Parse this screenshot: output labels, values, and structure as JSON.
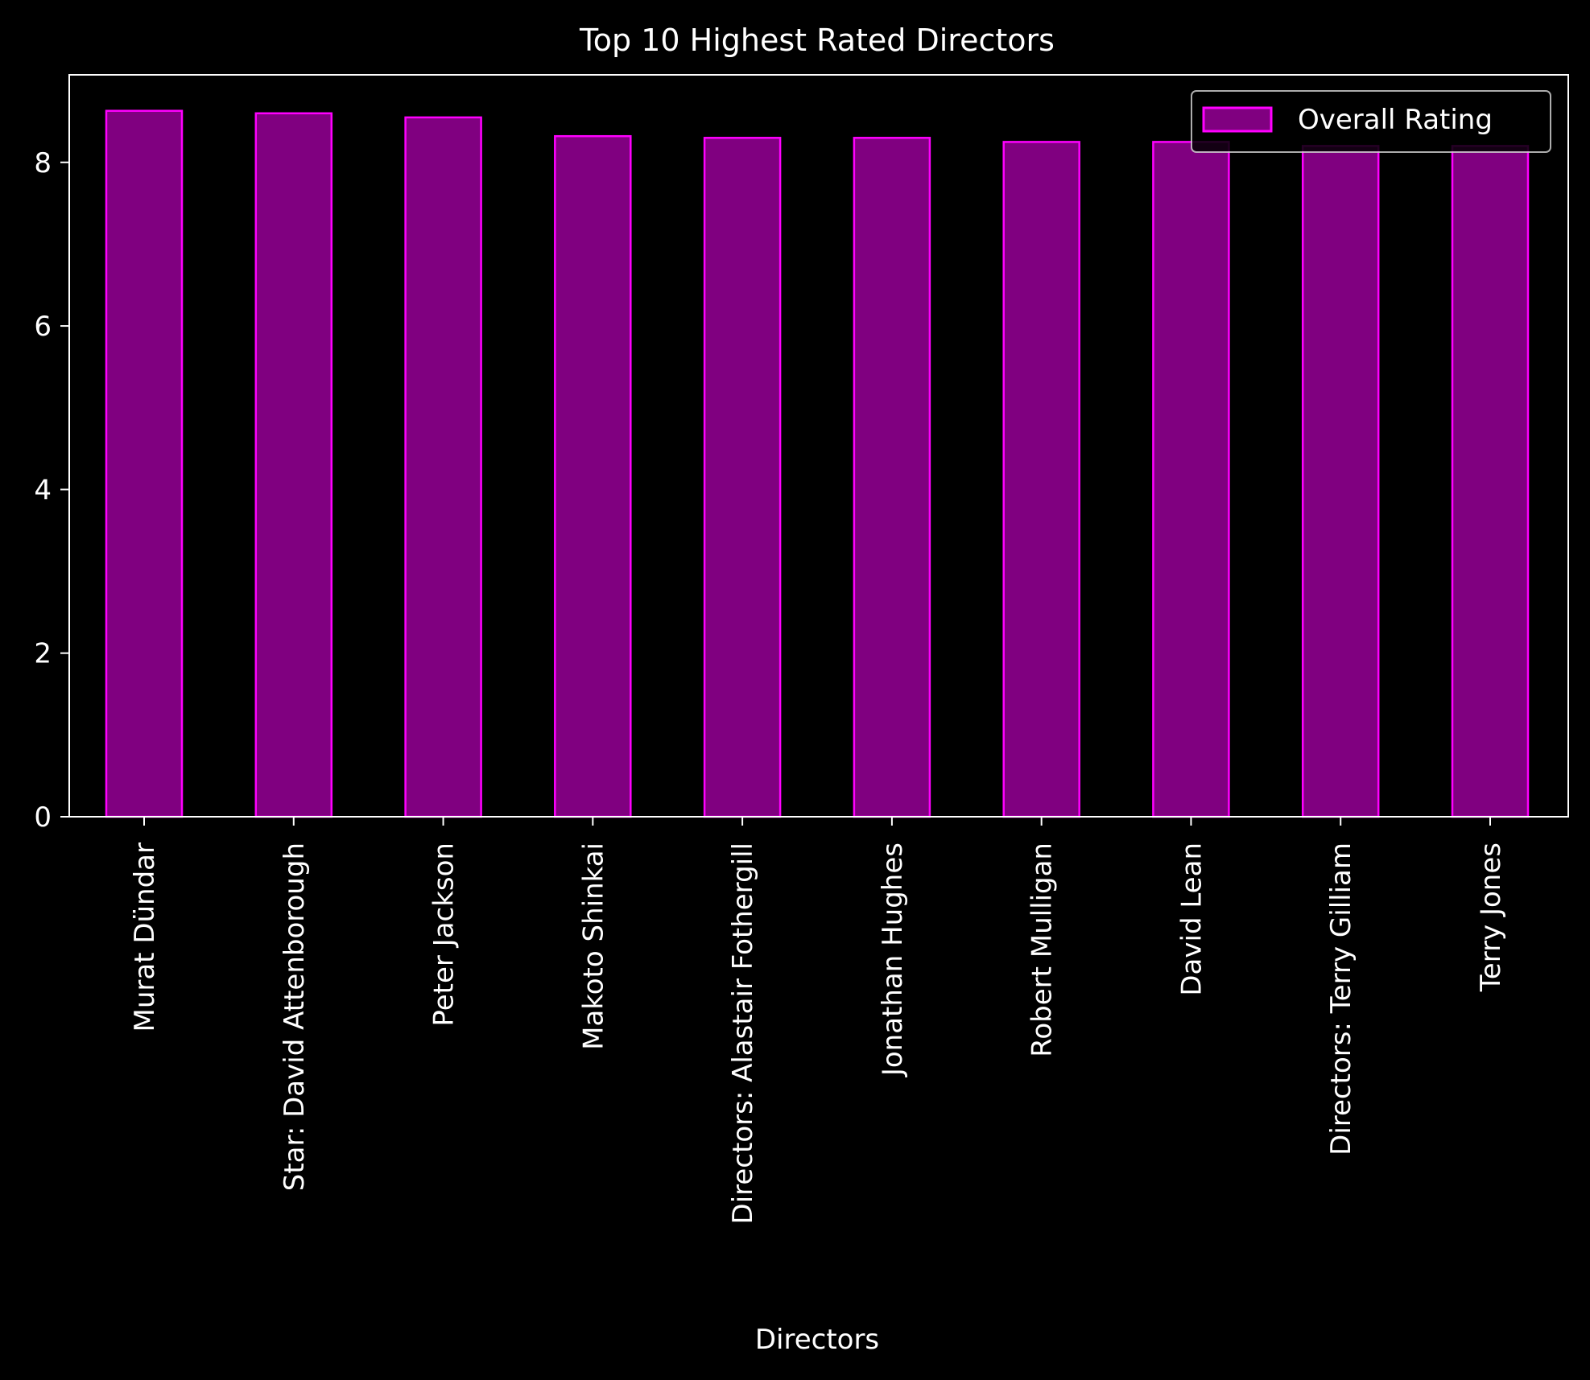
{
  "chart_data": {
    "type": "bar",
    "title": "Top 10 Highest Rated Directors",
    "xlabel": "Directors",
    "ylabel": "",
    "categories": [
      "Murat Dündar",
      "Star: David Attenborough",
      "Peter Jackson",
      "Makoto Shinkai",
      "Directors: Alastair Fothergill",
      "Jonathan Hughes",
      "Robert Mulligan",
      "David Lean",
      "Directors: Terry Gilliam",
      "Terry Jones"
    ],
    "series": [
      {
        "name": "Overall Rating",
        "values": [
          8.63,
          8.6,
          8.55,
          8.32,
          8.3,
          8.3,
          8.25,
          8.25,
          8.2,
          8.2
        ]
      }
    ],
    "ylim": [
      0,
      9.07
    ],
    "yticks": [
      0,
      2,
      4,
      6,
      8
    ],
    "grid": false,
    "legend_position": "top-right",
    "colors": {
      "background": "#000000",
      "bar_fill": "#800080",
      "bar_edge": "#ff00ff",
      "text": "#ffffff",
      "axes": "#ffffff"
    }
  }
}
